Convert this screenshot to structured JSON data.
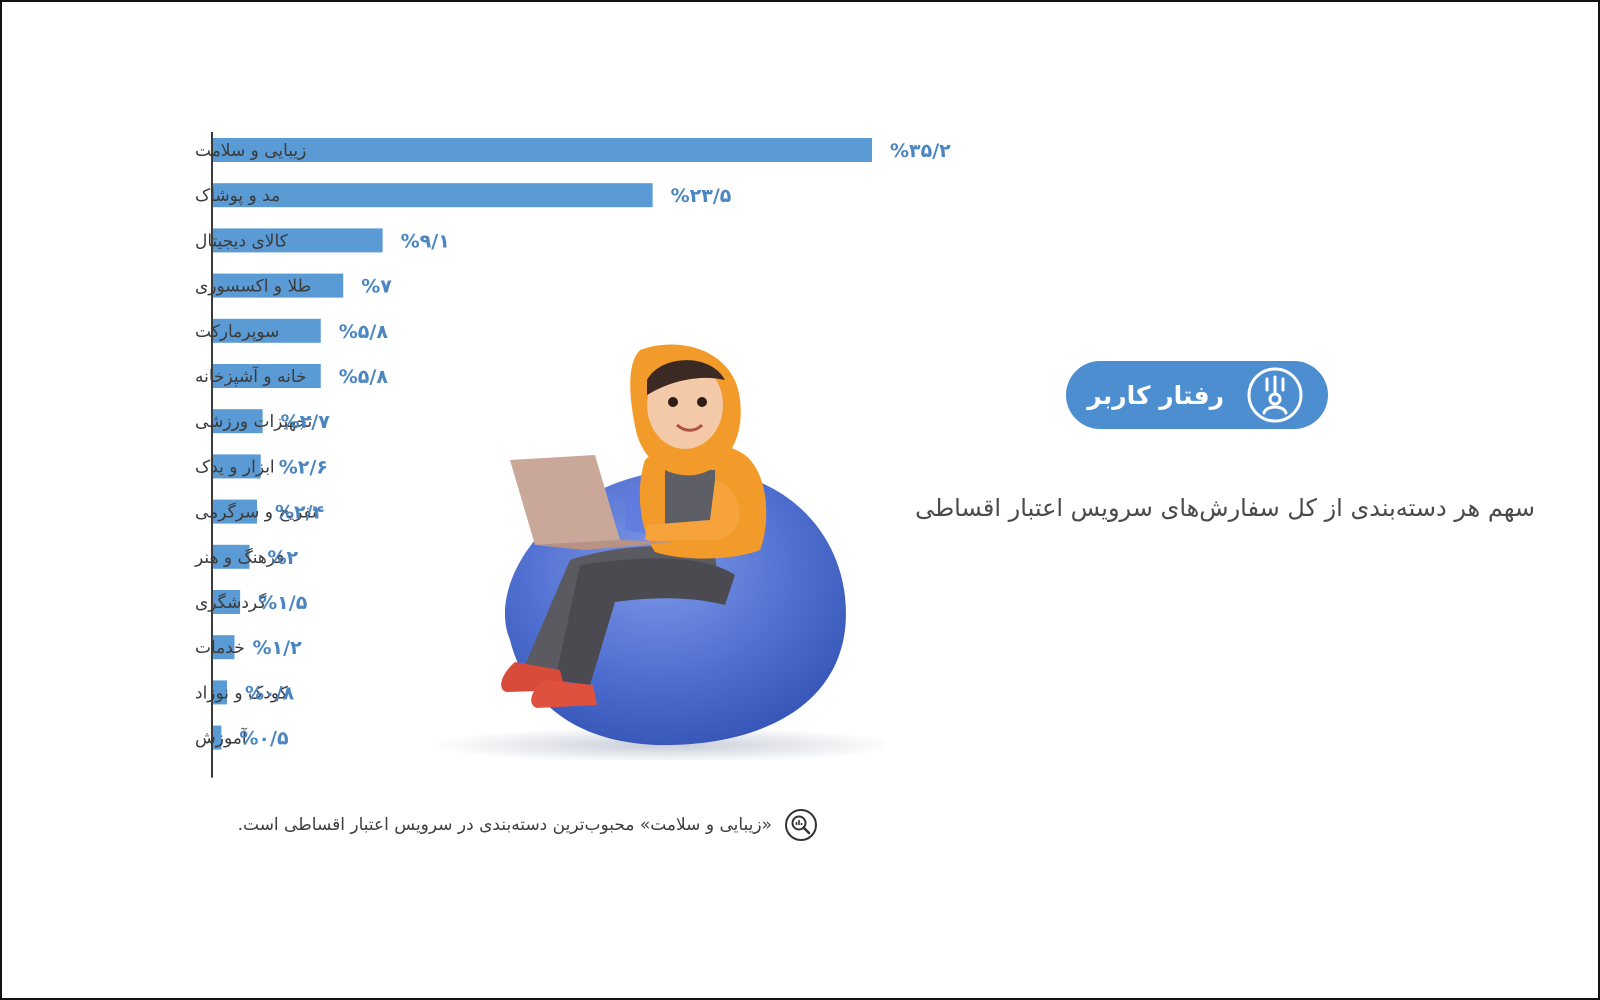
{
  "header": {
    "badge_label": "رفتار کاربر",
    "badge_icon": "user-signal-icon",
    "subtitle": "سهم هر دسته‌بندی از کل سفارش‌های سرویس اعتبار اقساطی"
  },
  "footnote": {
    "icon": "magnifier-chart-icon",
    "text": "«زیبایی و سلامت» محبوب‌ترین دسته‌بندی در سرویس اعتبار اقساطی است."
  },
  "colors": {
    "bar": "#5b9bd5",
    "value_label": "#4b86c2",
    "badge": "#4d8ed0",
    "beanbag": "#4f6fd0",
    "scarf": "#f39b2a"
  },
  "chart_data": {
    "type": "bar",
    "orientation": "horizontal",
    "categories": [
      "زیبایی و سلامت",
      "مد و پوشاک",
      "کالای دیجیتال",
      "طلا و اکسسوری",
      "سوپرمارکت",
      "خانه و آشپزخانه",
      "تجهیزات ورزشی",
      "ابزار و یدک",
      "تفریح و سرگرمی",
      "فرهنگ و هنر",
      "گردشگری",
      "خدمات",
      "کودک و نوزاد",
      "آموزش"
    ],
    "values": [
      35.2,
      23.5,
      9.1,
      7,
      5.8,
      5.8,
      2.7,
      2.6,
      2.4,
      2,
      1.5,
      1.2,
      0.8,
      0.5
    ],
    "value_labels": [
      "%۳۵/۲",
      "%۲۳/۵",
      "%۹/۱",
      "%۷",
      "%۵/۸",
      "%۵/۸",
      "%۲/۷",
      "%۲/۶",
      "%۲/۴",
      "%۲",
      "%۱/۵",
      "%۱/۲",
      "%۰/۸",
      "%۰/۵"
    ],
    "unit": "%",
    "title": "",
    "xlabel": "",
    "ylabel": "",
    "grid": false,
    "legend": "none"
  }
}
